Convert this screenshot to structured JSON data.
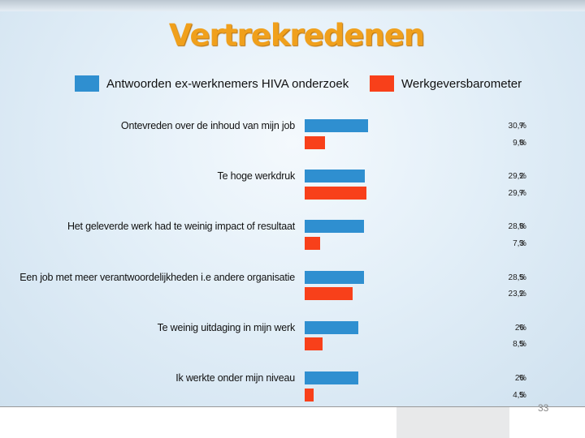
{
  "page_number": "33",
  "chart_data": {
    "type": "bar",
    "orientation": "horizontal",
    "title": "Vertrekredenen",
    "xlabel": "",
    "ylabel": "",
    "legend_placement": "top",
    "unit": "%",
    "categories": [
      "Ontevreden over de inhoud van mijn job",
      "Te hoge werkdruk",
      "Het geleverde werk had te weinig  impact of resultaat",
      "Een job met meer verantwoordelijkheden i.e andere organisatie",
      "Te weinig uitdaging in mijn werk",
      "Ik werkte onder mijn niveau"
    ],
    "series": [
      {
        "name": "Antwoorden ex-werknemers HIVA onderzoek",
        "color": "#2f8fd0",
        "values": [
          30.7,
          29.2,
          28.8,
          28.5,
          26,
          26
        ],
        "labels": [
          "30,7",
          "29,2",
          "28,8",
          "28,5",
          "26",
          "26"
        ]
      },
      {
        "name": "Werkgeversbarometer",
        "color": "#f8401a",
        "values": [
          9.8,
          29.7,
          7.3,
          23.2,
          8.5,
          4.5
        ],
        "labels": [
          "9,8",
          "29,7",
          "7,3",
          "23,2",
          "8,5",
          "4,5"
        ]
      }
    ]
  }
}
